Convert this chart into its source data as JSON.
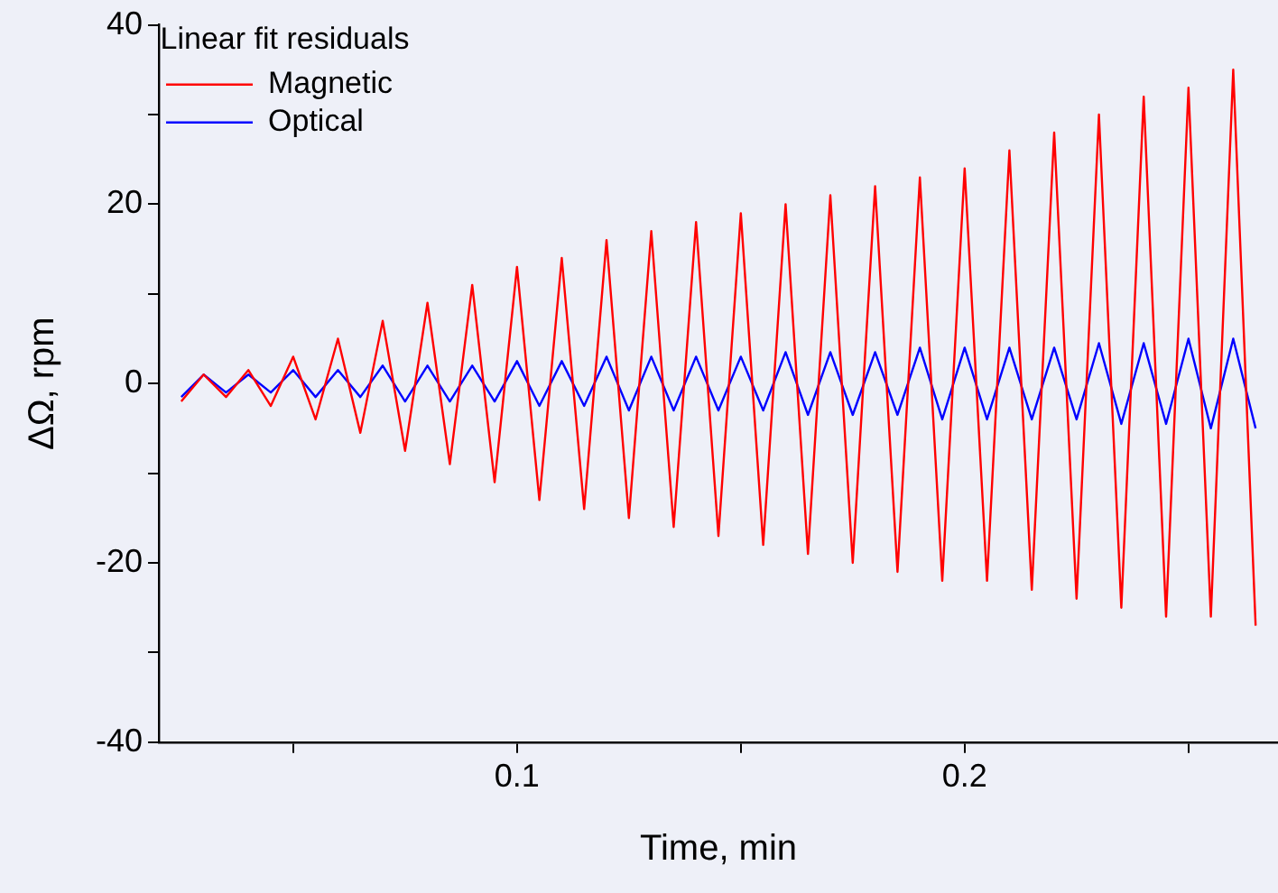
{
  "chart_data": {
    "type": "line",
    "xlabel": "Time, min",
    "ylabel": "ΔΩ, rpm",
    "legend_title": "Linear fit residuals",
    "legend": "top left",
    "grid": false,
    "marker": "none",
    "line_style": "solid",
    "xlim": [
      0.02,
      0.27
    ],
    "xticks": [
      {
        "value": 0.05,
        "label": null
      },
      0.1,
      {
        "value": 0.15,
        "label": null
      },
      0.2,
      {
        "value": 0.25,
        "label": null
      }
    ],
    "ylim": [
      -40,
      40
    ],
    "yticks": [
      -40,
      {
        "value": -30,
        "label": null
      },
      -20,
      {
        "value": -10,
        "label": null
      },
      0,
      {
        "value": 10,
        "label": null
      },
      20,
      {
        "value": 30,
        "label": null
      },
      40
    ],
    "x": [
      0.025,
      0.03,
      0.035,
      0.04,
      0.045,
      0.05,
      0.055,
      0.06,
      0.065,
      0.07,
      0.075,
      0.08,
      0.085,
      0.09,
      0.095,
      0.1,
      0.105,
      0.11,
      0.115,
      0.12,
      0.125,
      0.13,
      0.135,
      0.14,
      0.145,
      0.15,
      0.155,
      0.16,
      0.165,
      0.17,
      0.175,
      0.18,
      0.185,
      0.19,
      0.195,
      0.2,
      0.205,
      0.21,
      0.215,
      0.22,
      0.225,
      0.23,
      0.235,
      0.24,
      0.245,
      0.25,
      0.255,
      0.26,
      0.265
    ],
    "series": [
      {
        "name": "Magnetic",
        "color": "#ff0000",
        "values": [
          -2,
          1,
          -1.5,
          1.5,
          -2.5,
          3,
          -4,
          5,
          -5.5,
          7,
          -7.5,
          9,
          -9,
          11,
          -11,
          13,
          -13,
          14,
          -14,
          16,
          -15,
          17,
          -16,
          18,
          -17,
          19,
          -18,
          20,
          -19,
          21,
          -20,
          22,
          -21,
          23,
          -22,
          24,
          -22,
          26,
          -23,
          28,
          -24,
          30,
          -25,
          32,
          -26,
          33,
          -26,
          35,
          -27
        ]
      },
      {
        "name": "Optical",
        "color": "#0000ff",
        "values": [
          -1.5,
          1,
          -1,
          1,
          -1,
          1.5,
          -1.5,
          1.5,
          -1.5,
          2,
          -2,
          2,
          -2,
          2,
          -2,
          2.5,
          -2.5,
          2.5,
          -2.5,
          3,
          -3,
          3,
          -3,
          3,
          -3,
          3,
          -3,
          3.5,
          -3.5,
          3.5,
          -3.5,
          3.5,
          -3.5,
          4,
          -4,
          4,
          -4,
          4,
          -4,
          4,
          -4,
          4.5,
          -4.5,
          4.5,
          -4.5,
          5,
          -5,
          5,
          -5
        ]
      }
    ]
  }
}
